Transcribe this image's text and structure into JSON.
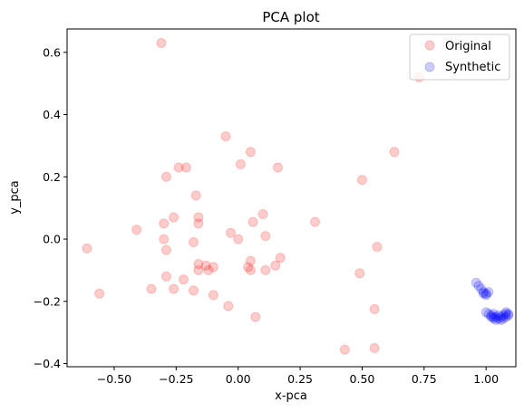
{
  "chart_data": {
    "type": "scatter",
    "title": "PCA plot",
    "xlabel": "x-pca",
    "ylabel": "y_pca",
    "xlim": [
      -0.69,
      1.12
    ],
    "ylim": [
      -0.41,
      0.675
    ],
    "xticks": [
      -0.5,
      -0.25,
      0.0,
      0.25,
      0.5,
      0.75,
      1.0
    ],
    "xtick_labels": [
      "−0.50",
      "−0.25",
      "0.00",
      "0.25",
      "0.50",
      "0.75",
      "1.00"
    ],
    "yticks": [
      -0.4,
      -0.2,
      0.0,
      0.2,
      0.4,
      0.6
    ],
    "ytick_labels": [
      "−0.4",
      "−0.2",
      "0.0",
      "0.2",
      "0.4",
      "0.6"
    ],
    "grid": false,
    "legend_position": "top-right",
    "series": [
      {
        "name": "Original",
        "color": "#ff0000",
        "alpha": 0.2,
        "points": [
          [
            -0.31,
            0.63
          ],
          [
            -0.05,
            0.33
          ],
          [
            0.05,
            0.28
          ],
          [
            0.63,
            0.28
          ],
          [
            0.73,
            0.52
          ],
          [
            -0.24,
            0.23
          ],
          [
            -0.21,
            0.23
          ],
          [
            0.01,
            0.24
          ],
          [
            0.16,
            0.23
          ],
          [
            -0.29,
            0.2
          ],
          [
            0.5,
            0.19
          ],
          [
            -0.17,
            0.14
          ],
          [
            -0.16,
            0.07
          ],
          [
            -0.16,
            0.05
          ],
          [
            0.1,
            0.08
          ],
          [
            0.31,
            0.055
          ],
          [
            0.06,
            0.055
          ],
          [
            -0.3,
            0.05
          ],
          [
            -0.26,
            0.07
          ],
          [
            -0.41,
            0.03
          ],
          [
            -0.03,
            0.02
          ],
          [
            0.0,
            0.0
          ],
          [
            0.11,
            0.01
          ],
          [
            -0.3,
            0.0
          ],
          [
            -0.18,
            -0.01
          ],
          [
            -0.61,
            -0.03
          ],
          [
            -0.29,
            -0.035
          ],
          [
            0.56,
            -0.025
          ],
          [
            0.17,
            -0.06
          ],
          [
            0.05,
            -0.07
          ],
          [
            -0.16,
            -0.08
          ],
          [
            -0.13,
            -0.085
          ],
          [
            0.04,
            -0.09
          ],
          [
            0.15,
            -0.085
          ],
          [
            -0.1,
            -0.09
          ],
          [
            -0.16,
            -0.1
          ],
          [
            -0.12,
            -0.1
          ],
          [
            0.11,
            -0.1
          ],
          [
            0.05,
            -0.1
          ],
          [
            0.49,
            -0.11
          ],
          [
            -0.29,
            -0.12
          ],
          [
            -0.22,
            -0.13
          ],
          [
            -0.35,
            -0.16
          ],
          [
            -0.26,
            -0.16
          ],
          [
            -0.18,
            -0.165
          ],
          [
            -0.56,
            -0.175
          ],
          [
            -0.1,
            -0.18
          ],
          [
            -0.04,
            -0.215
          ],
          [
            0.55,
            -0.225
          ],
          [
            0.07,
            -0.25
          ],
          [
            0.43,
            -0.355
          ],
          [
            0.55,
            -0.35
          ]
        ]
      },
      {
        "name": "Synthetic",
        "color": "#0000ff",
        "alpha": 0.2,
        "points": [
          [
            0.96,
            -0.14
          ],
          [
            0.97,
            -0.15
          ],
          [
            0.98,
            -0.16
          ],
          [
            0.99,
            -0.17
          ],
          [
            1.0,
            -0.175
          ],
          [
            1.0,
            -0.18
          ],
          [
            0.99,
            -0.175
          ],
          [
            1.01,
            -0.17
          ],
          [
            1.0,
            -0.235
          ],
          [
            1.01,
            -0.24
          ],
          [
            1.02,
            -0.245
          ],
          [
            1.03,
            -0.25
          ],
          [
            1.03,
            -0.255
          ],
          [
            1.04,
            -0.25
          ],
          [
            1.05,
            -0.245
          ],
          [
            1.06,
            -0.25
          ],
          [
            1.07,
            -0.245
          ],
          [
            1.08,
            -0.24
          ],
          [
            1.09,
            -0.24
          ],
          [
            1.08,
            -0.25
          ],
          [
            1.06,
            -0.26
          ],
          [
            1.05,
            -0.255
          ],
          [
            1.04,
            -0.26
          ],
          [
            1.02,
            -0.25
          ],
          [
            1.07,
            -0.255
          ],
          [
            1.09,
            -0.245
          ],
          [
            1.08,
            -0.235
          ],
          [
            1.03,
            -0.24
          ]
        ]
      }
    ]
  }
}
